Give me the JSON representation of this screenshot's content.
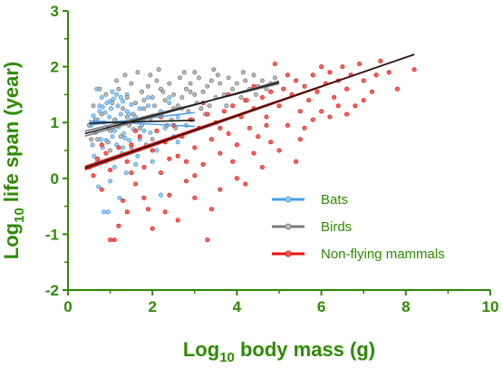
{
  "chart_data": {
    "type": "scatter",
    "title": "",
    "xlabel": {
      "prefix": "Log",
      "sub": "10",
      "suffix": " body mass (g)"
    },
    "ylabel": {
      "prefix": "Log",
      "sub": "10",
      "suffix": " life span (year)"
    },
    "xlim": [
      0,
      10
    ],
    "ylim": [
      -2,
      3
    ],
    "xticks": [
      "0",
      "2",
      "4",
      "6",
      "8",
      "10"
    ],
    "yticks": [
      "-2",
      "-1",
      "0",
      "1",
      "2",
      "3"
    ],
    "grid": false,
    "legend_position": "lower-right",
    "colors": {
      "axis": "#2e8b00",
      "fit_line": "#1a1a1a"
    },
    "series": [
      {
        "name": "Bats",
        "color": "#4a9ee8",
        "fill": "#9ecdf5",
        "x_range": [
          0.5,
          3.0
        ],
        "fit": {
          "slope": 0.02,
          "intercept": 0.98
        },
        "ci": [
          {
            "slope": -0.04,
            "intercept": 1.05
          },
          {
            "slope": 0.09,
            "intercept": 0.91
          }
        ],
        "points": [
          [
            0.55,
            0.95
          ],
          [
            0.6,
            1.12
          ],
          [
            0.65,
            0.82
          ],
          [
            0.7,
            1.05
          ],
          [
            0.72,
            -0.15
          ],
          [
            0.75,
            1.3
          ],
          [
            0.78,
            0.7
          ],
          [
            0.8,
            1.45
          ],
          [
            0.82,
            0.55
          ],
          [
            0.85,
            1.0
          ],
          [
            0.88,
            1.18
          ],
          [
            0.9,
            0.3
          ],
          [
            0.92,
            1.35
          ],
          [
            0.95,
            0.9
          ],
          [
            0.98,
            1.1
          ],
          [
            1.0,
            -0.05
          ],
          [
            1.02,
            1.25
          ],
          [
            1.05,
            0.75
          ],
          [
            1.08,
            1.42
          ],
          [
            1.1,
            0.2
          ],
          [
            1.12,
            1.05
          ],
          [
            1.15,
            0.6
          ],
          [
            1.18,
            1.3
          ],
          [
            1.2,
            0.92
          ],
          [
            1.22,
            -0.35
          ],
          [
            1.25,
            1.15
          ],
          [
            1.28,
            0.45
          ],
          [
            1.3,
            1.38
          ],
          [
            1.32,
            0.8
          ],
          [
            1.35,
            1.0
          ],
          [
            1.38,
            0.1
          ],
          [
            1.4,
            1.2
          ],
          [
            1.45,
            0.68
          ],
          [
            1.5,
            1.32
          ],
          [
            1.55,
            0.88
          ],
          [
            1.6,
            1.1
          ],
          [
            1.65,
            0.4
          ],
          [
            1.7,
            1.25
          ],
          [
            1.75,
            0.95
          ],
          [
            1.8,
            1.05
          ],
          [
            1.85,
            0.6
          ],
          [
            1.9,
            1.3
          ],
          [
            1.95,
            0.82
          ],
          [
            2.0,
            1.12
          ],
          [
            2.1,
            0.5
          ],
          [
            2.2,
            1.2
          ],
          [
            2.3,
            0.9
          ],
          [
            2.4,
            1.35
          ],
          [
            2.5,
            0.75
          ],
          [
            2.6,
            1.1
          ],
          [
            2.7,
            1.25
          ],
          [
            2.8,
            0.95
          ],
          [
            0.85,
            -0.6
          ],
          [
            0.95,
            -0.6
          ],
          [
            1.05,
            1.55
          ],
          [
            0.68,
            1.6
          ],
          [
            1.4,
            1.5
          ],
          [
            2.2,
            -0.3
          ],
          [
            0.62,
            0.4
          ],
          [
            1.15,
            1.5
          ],
          [
            0.9,
            0.68
          ],
          [
            1.6,
            0.25
          ],
          [
            0.75,
            1.2
          ],
          [
            1.3,
            0.55
          ],
          [
            2.0,
            0.3
          ],
          [
            1.25,
            1.45
          ],
          [
            0.58,
            0.6
          ],
          [
            1.7,
            0.7
          ],
          [
            2.4,
            1.45
          ],
          [
            0.82,
            1.28
          ],
          [
            1.1,
            0.85
          ],
          [
            1.5,
            1.05
          ],
          [
            1.9,
            1.45
          ],
          [
            0.7,
            0.3
          ],
          [
            1.35,
            0.72
          ],
          [
            2.6,
            0.65
          ],
          [
            1.0,
            1.38
          ],
          [
            0.65,
            1.0
          ],
          [
            1.45,
            1.15
          ],
          [
            1.8,
            0.85
          ]
        ]
      },
      {
        "name": "Birds",
        "color": "#7a7a7a",
        "fill": "#bdbdbd",
        "x_range": [
          0.4,
          5.0
        ],
        "fit": {
          "slope": 0.2,
          "intercept": 0.72
        },
        "ci": [
          {
            "slope": 0.185,
            "intercept": 0.77
          },
          {
            "slope": 0.215,
            "intercept": 0.67
          }
        ],
        "points": [
          [
            0.5,
            0.95
          ],
          [
            0.6,
            1.3
          ],
          [
            0.7,
            0.7
          ],
          [
            0.8,
            1.15
          ],
          [
            0.9,
            1.5
          ],
          [
            1.0,
            0.85
          ],
          [
            1.05,
            1.35
          ],
          [
            1.1,
            1.05
          ],
          [
            1.2,
            1.6
          ],
          [
            1.25,
            0.75
          ],
          [
            1.3,
            1.25
          ],
          [
            1.4,
            1.45
          ],
          [
            1.45,
            0.95
          ],
          [
            1.5,
            1.7
          ],
          [
            1.55,
            1.15
          ],
          [
            1.6,
            1.35
          ],
          [
            1.7,
            0.9
          ],
          [
            1.75,
            1.55
          ],
          [
            1.8,
            1.25
          ],
          [
            1.9,
            1.65
          ],
          [
            1.95,
            1.05
          ],
          [
            2.0,
            1.45
          ],
          [
            2.05,
            1.3
          ],
          [
            2.1,
            1.75
          ],
          [
            2.2,
            1.15
          ],
          [
            2.25,
            1.55
          ],
          [
            2.3,
            1.4
          ],
          [
            2.4,
            1.7
          ],
          [
            2.45,
            1.05
          ],
          [
            2.5,
            1.5
          ],
          [
            2.6,
            1.3
          ],
          [
            2.65,
            1.8
          ],
          [
            2.7,
            1.45
          ],
          [
            2.8,
            1.6
          ],
          [
            2.85,
            1.2
          ],
          [
            2.9,
            1.7
          ],
          [
            3.0,
            1.5
          ],
          [
            3.05,
            1.35
          ],
          [
            3.1,
            1.8
          ],
          [
            3.2,
            1.55
          ],
          [
            3.3,
            1.65
          ],
          [
            3.35,
            1.3
          ],
          [
            3.4,
            1.75
          ],
          [
            3.5,
            1.45
          ],
          [
            3.6,
            1.7
          ],
          [
            3.7,
            1.5
          ],
          [
            3.8,
            1.8
          ],
          [
            3.9,
            1.6
          ],
          [
            4.0,
            1.7
          ],
          [
            4.1,
            1.45
          ],
          [
            4.2,
            1.75
          ],
          [
            4.3,
            1.6
          ],
          [
            4.4,
            1.85
          ],
          [
            4.5,
            1.65
          ],
          [
            4.6,
            1.75
          ],
          [
            4.7,
            1.6
          ],
          [
            4.8,
            1.7
          ],
          [
            4.9,
            1.8
          ],
          [
            1.0,
            0.5
          ],
          [
            1.5,
            0.55
          ],
          [
            2.0,
            0.7
          ],
          [
            1.35,
            1.85
          ],
          [
            2.75,
            1.9
          ],
          [
            3.25,
            1.15
          ],
          [
            0.75,
            1.6
          ],
          [
            1.85,
            0.6
          ],
          [
            2.55,
            0.9
          ],
          [
            1.15,
            1.75
          ],
          [
            2.15,
            1.95
          ],
          [
            3.45,
            1.95
          ],
          [
            0.95,
            0.65
          ],
          [
            1.65,
            1.9
          ],
          [
            2.35,
            0.95
          ],
          [
            3.15,
            1.25
          ],
          [
            3.75,
            1.3
          ],
          [
            4.25,
            1.4
          ],
          [
            0.65,
            1.05
          ],
          [
            1.25,
            1.0
          ],
          [
            1.95,
            1.85
          ],
          [
            2.95,
            1.05
          ],
          [
            4.15,
            1.9
          ],
          [
            0.55,
            0.7
          ],
          [
            1.4,
            1.1
          ],
          [
            2.2,
            1.6
          ],
          [
            2.9,
            1.55
          ],
          [
            3.55,
            1.85
          ],
          [
            4.45,
            1.5
          ],
          [
            1.8,
            1.4
          ],
          [
            2.5,
            1.25
          ],
          [
            3.0,
            1.9
          ]
        ]
      },
      {
        "name": "Non-flying mammals",
        "color": "#e8140c",
        "fill": "#f46a62",
        "x_range": [
          0.4,
          8.2
        ],
        "fit": {
          "slope": 0.261,
          "intercept": 0.08
        },
        "ci": [
          {
            "slope": 0.257,
            "intercept": 0.11
          },
          {
            "slope": 0.265,
            "intercept": 0.05
          }
        ],
        "points": [
          [
            0.5,
            0.2
          ],
          [
            0.6,
            0.05
          ],
          [
            0.7,
            0.35
          ],
          [
            0.8,
            -0.2
          ],
          [
            0.9,
            0.45
          ],
          [
            1.0,
            0.15
          ],
          [
            1.0,
            -1.1
          ],
          [
            1.1,
            -1.1
          ],
          [
            1.2,
            0.55
          ],
          [
            1.3,
            -0.4
          ],
          [
            1.4,
            0.3
          ],
          [
            1.5,
            0.6
          ],
          [
            1.6,
            -0.1
          ],
          [
            1.7,
            0.75
          ],
          [
            1.8,
            0.2
          ],
          [
            1.9,
            -0.55
          ],
          [
            2.0,
            0.5
          ],
          [
            2.1,
            0.85
          ],
          [
            2.2,
            0.1
          ],
          [
            2.3,
            0.65
          ],
          [
            2.4,
            -0.3
          ],
          [
            2.5,
            0.95
          ],
          [
            2.6,
            0.4
          ],
          [
            2.7,
            0.75
          ],
          [
            2.8,
            -0.05
          ],
          [
            2.9,
            1.05
          ],
          [
            3.0,
            0.55
          ],
          [
            3.1,
            0.9
          ],
          [
            3.2,
            0.25
          ],
          [
            3.3,
            1.15
          ],
          [
            3.3,
            -1.1
          ],
          [
            3.4,
            0.7
          ],
          [
            3.5,
            1.0
          ],
          [
            3.6,
            0.45
          ],
          [
            3.7,
            1.2
          ],
          [
            3.8,
            0.8
          ],
          [
            3.9,
            1.3
          ],
          [
            4.0,
            0.6
          ],
          [
            4.1,
            1.1
          ],
          [
            4.2,
            1.4
          ],
          [
            4.3,
            0.9
          ],
          [
            4.4,
            1.25
          ],
          [
            4.5,
            0.75
          ],
          [
            4.6,
            1.45
          ],
          [
            4.7,
            1.1
          ],
          [
            4.8,
            1.55
          ],
          [
            4.9,
            2.05
          ],
          [
            5.0,
            1.3
          ],
          [
            5.1,
            1.6
          ],
          [
            5.2,
            0.95
          ],
          [
            5.3,
            1.5
          ],
          [
            5.4,
            1.75
          ],
          [
            5.5,
            1.2
          ],
          [
            5.6,
            1.65
          ],
          [
            5.7,
            1.4
          ],
          [
            5.8,
            1.85
          ],
          [
            5.9,
            1.55
          ],
          [
            6.0,
            1.2
          ],
          [
            6.1,
            1.7
          ],
          [
            6.2,
            1.9
          ],
          [
            6.3,
            1.45
          ],
          [
            6.4,
            1.75
          ],
          [
            6.5,
            2.0
          ],
          [
            6.6,
            1.6
          ],
          [
            6.7,
            1.85
          ],
          [
            6.8,
            1.3
          ],
          [
            6.9,
            2.05
          ],
          [
            7.0,
            1.75
          ],
          [
            7.2,
            1.55
          ],
          [
            7.4,
            2.1
          ],
          [
            7.6,
            1.9
          ],
          [
            7.8,
            1.6
          ],
          [
            8.2,
            1.95
          ],
          [
            1.4,
            -0.6
          ],
          [
            2.0,
            -0.9
          ],
          [
            2.6,
            -0.75
          ],
          [
            3.0,
            -0.35
          ],
          [
            3.6,
            -0.2
          ],
          [
            4.2,
            -0.1
          ],
          [
            4.6,
            0.2
          ],
          [
            5.0,
            0.5
          ],
          [
            5.4,
            0.3
          ],
          [
            1.2,
            -0.85
          ],
          [
            1.8,
            -0.35
          ],
          [
            2.3,
            -0.6
          ],
          [
            3.4,
            -0.55
          ],
          [
            4.0,
            0.0
          ],
          [
            4.8,
            0.65
          ],
          [
            5.6,
            0.9
          ],
          [
            6.2,
            1.1
          ],
          [
            0.8,
            0.6
          ],
          [
            1.6,
            0.85
          ],
          [
            2.2,
            1.1
          ],
          [
            3.2,
            1.35
          ],
          [
            3.8,
            1.5
          ],
          [
            4.4,
            1.65
          ],
          [
            5.2,
            1.85
          ],
          [
            6.0,
            2.0
          ],
          [
            2.8,
            0.3
          ],
          [
            3.6,
            0.9
          ],
          [
            4.4,
            0.45
          ],
          [
            5.8,
            1.05
          ],
          [
            6.6,
            1.15
          ],
          [
            7.0,
            1.4
          ],
          [
            1.5,
            0.1
          ],
          [
            2.4,
            0.35
          ],
          [
            3.0,
            0.05
          ],
          [
            3.9,
            0.3
          ],
          [
            4.7,
            0.95
          ],
          [
            5.5,
            0.7
          ],
          [
            6.4,
            1.3
          ],
          [
            7.3,
            1.85
          ]
        ]
      }
    ]
  }
}
